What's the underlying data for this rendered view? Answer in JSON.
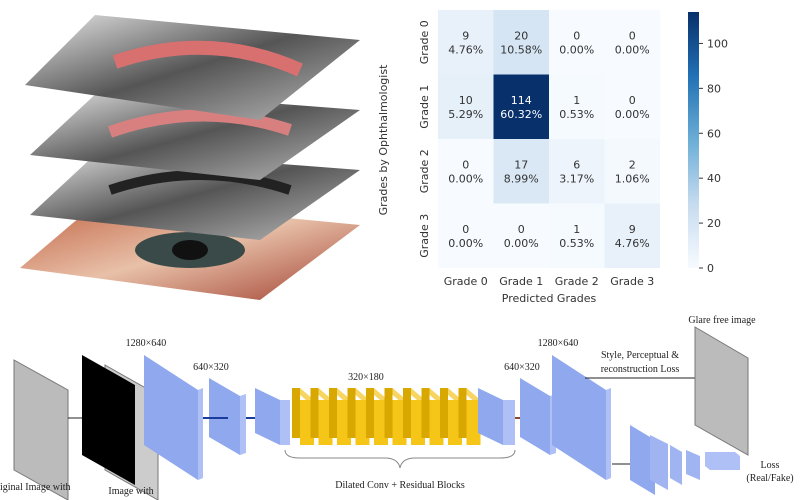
{
  "chart_data": {
    "type": "heatmap",
    "xlabel": "Predicted Grades",
    "ylabel": "Grades by Ophthalmologist",
    "x_categories": [
      "Grade 0",
      "Grade 1",
      "Grade 2",
      "Grade 3"
    ],
    "y_categories": [
      "Grade 0",
      "Grade 1",
      "Grade 2",
      "Grade 3"
    ],
    "counts": [
      [
        9,
        20,
        0,
        0
      ],
      [
        10,
        114,
        1,
        0
      ],
      [
        0,
        17,
        6,
        2
      ],
      [
        0,
        0,
        1,
        9
      ]
    ],
    "percents": [
      [
        "4.76%",
        "10.58%",
        "0.00%",
        "0.00%"
      ],
      [
        "5.29%",
        "60.32%",
        "0.53%",
        "0.00%"
      ],
      [
        "0.00%",
        "8.99%",
        "3.17%",
        "1.06%"
      ],
      [
        "0.00%",
        "0.00%",
        "0.53%",
        "4.76%"
      ]
    ],
    "colorbar": {
      "ticks": [
        0,
        20,
        40,
        60,
        80,
        100
      ],
      "range": [
        0,
        114
      ],
      "colormap": "Blues"
    }
  },
  "diagram": {
    "labels": {
      "input_original": "Original Image with",
      "input_mask": "Image with",
      "size_1280_in": "1280×640",
      "size_640_in": "640×320",
      "size_320": "320×180",
      "dilated": "Dilated Conv + Residual Blocks",
      "size_640_out": "640×320",
      "size_1280_out": "1280×640",
      "loss_text_1": "Style, Perceptual &",
      "loss_text_2": "reconstruction Loss",
      "glare_free": "Glare free image",
      "disc_loss_1": "Loss",
      "disc_loss_2": "(Real/Fake)"
    },
    "colors": {
      "encoder": "#8fa8ee",
      "residual": "#f5c518",
      "arrow_blue": "#1a3c9c",
      "arrow_brown": "#8b4a2b"
    }
  }
}
